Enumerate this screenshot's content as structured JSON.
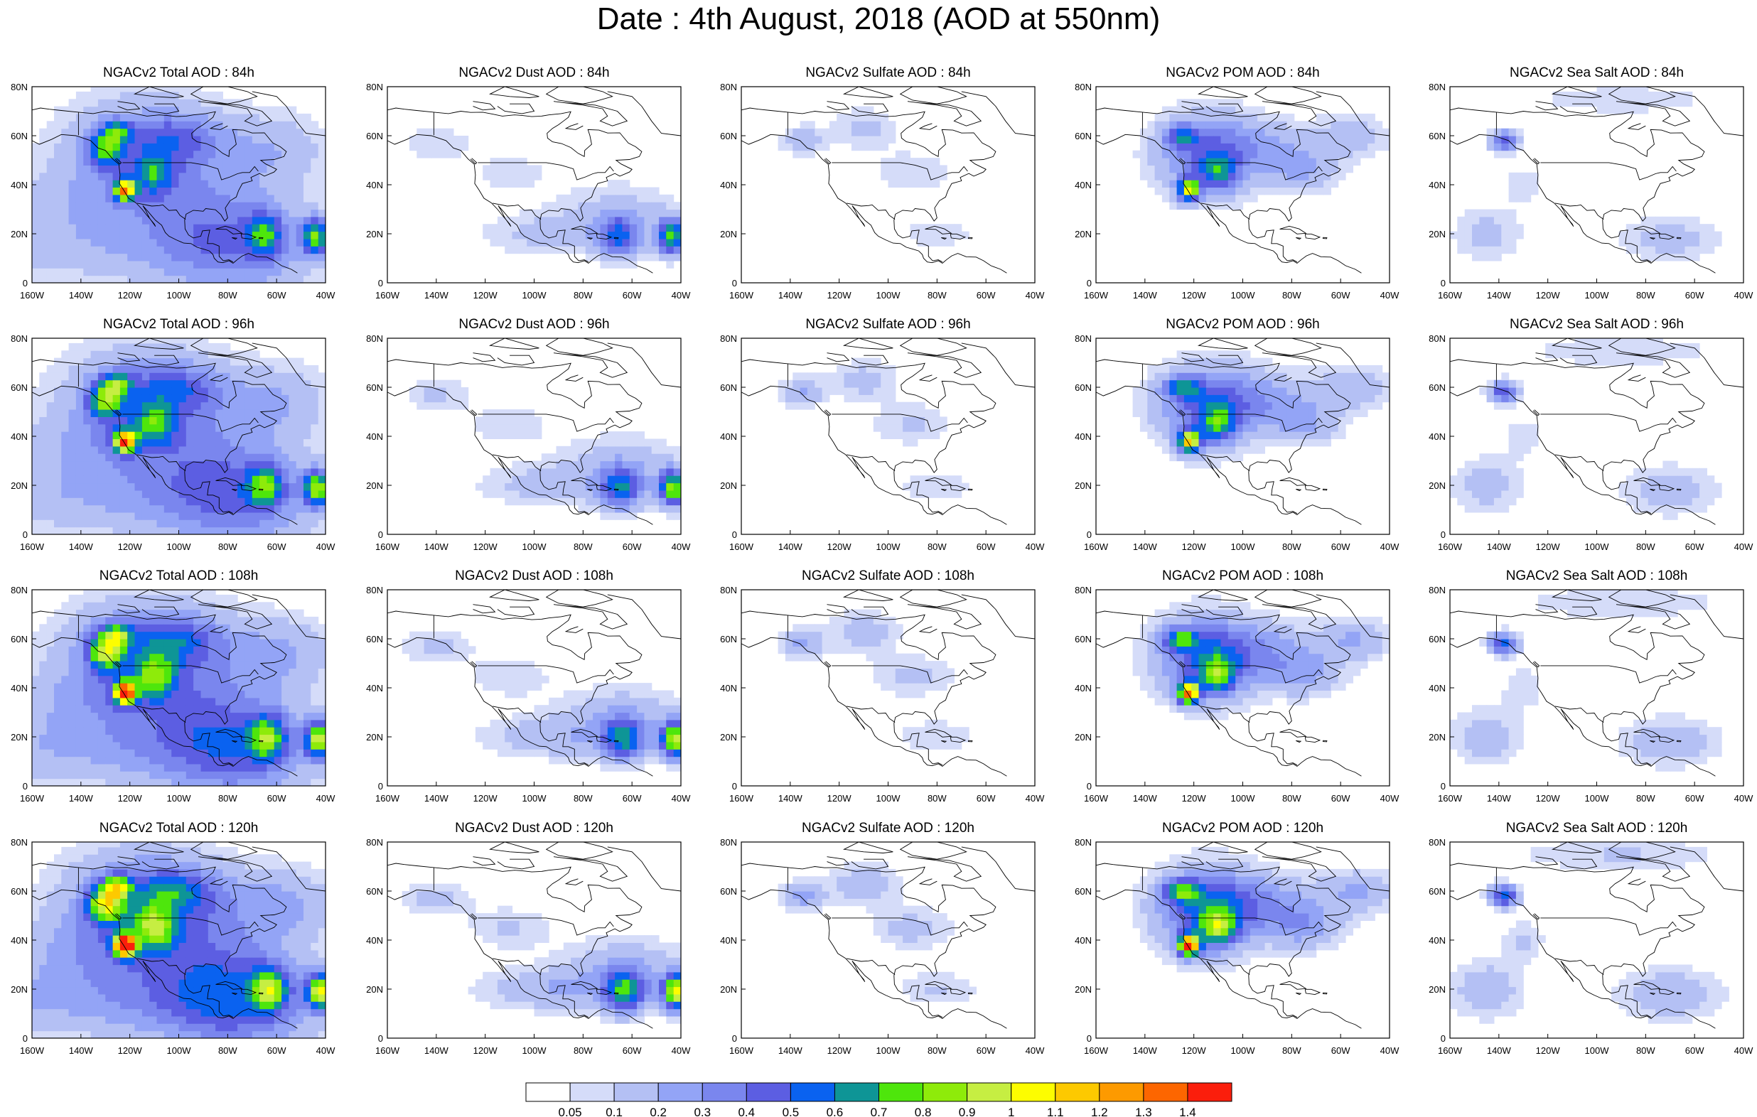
{
  "title": "Date : 4th August, 2018 (AOD at 550nm)",
  "columns": [
    {
      "key": "total",
      "label": "NGACv2 Total AOD"
    },
    {
      "key": "dust",
      "label": "NGACv2 Dust AOD"
    },
    {
      "key": "sulfate",
      "label": "NGACv2 Sulfate AOD"
    },
    {
      "key": "pom",
      "label": "NGACv2 POM AOD"
    },
    {
      "key": "seasalt",
      "label": "NGACv2 Sea Salt AOD"
    }
  ],
  "panels": [
    [
      "NGACv2 Total AOD : 84h",
      "NGACv2 Dust AOD : 84h",
      "NGACv2 Sulfate AOD : 84h",
      "NGACv2 POM AOD : 84h",
      "NGACv2 Sea Salt AOD : 84h"
    ],
    [
      "NGACv2 Total AOD : 96h",
      "NGACv2 Dust AOD : 96h",
      "NGACv2 Sulfate AOD : 96h",
      "NGACv2 POM AOD : 96h",
      "NGACv2 Sea Salt AOD : 96h"
    ],
    [
      "NGACv2 Total AOD : 108h",
      "NGACv2 Dust AOD : 108h",
      "NGACv2 Sulfate AOD : 108h",
      "NGACv2 POM AOD : 108h",
      "NGACv2 Sea Salt AOD : 108h"
    ],
    [
      "NGACv2 Total AOD : 120h",
      "NGACv2 Dust AOD : 120h",
      "NGACv2 Sulfate AOD : 120h",
      "NGACv2 POM AOD : 120h",
      "NGACv2 Sea Salt  AOD : 120h"
    ]
  ],
  "forecast_hours": [
    "84h",
    "96h",
    "108h",
    "120h"
  ],
  "x_ticks": [
    "160W",
    "140W",
    "120W",
    "100W",
    "80W",
    "60W",
    "40W"
  ],
  "y_ticks": [
    "0",
    "20N",
    "40N",
    "60N",
    "80N"
  ],
  "map_extent": {
    "lon": [
      -160,
      -40
    ],
    "lat": [
      0,
      80
    ]
  },
  "colorbar": {
    "levels": [
      "0.05",
      "0.1",
      "0.2",
      "0.3",
      "0.4",
      "0.5",
      "0.6",
      "0.7",
      "0.8",
      "0.9",
      "1",
      "1.1",
      "1.2",
      "1.3",
      "1.4"
    ],
    "colors": [
      "#ffffff",
      "#d5dcf9",
      "#b4c0f4",
      "#93a4f6",
      "#7a86ee",
      "#5c5ee2",
      "#0a62f0",
      "#0e9596",
      "#4ee60c",
      "#8eeb0a",
      "#c6ee42",
      "#fdfd00",
      "#fdc900",
      "#fd9a00",
      "#fd6600",
      "#fb1e0c"
    ]
  },
  "colors": {
    "coastline": "#000000",
    "background": "#ffffff",
    "frame": "#000000"
  }
}
